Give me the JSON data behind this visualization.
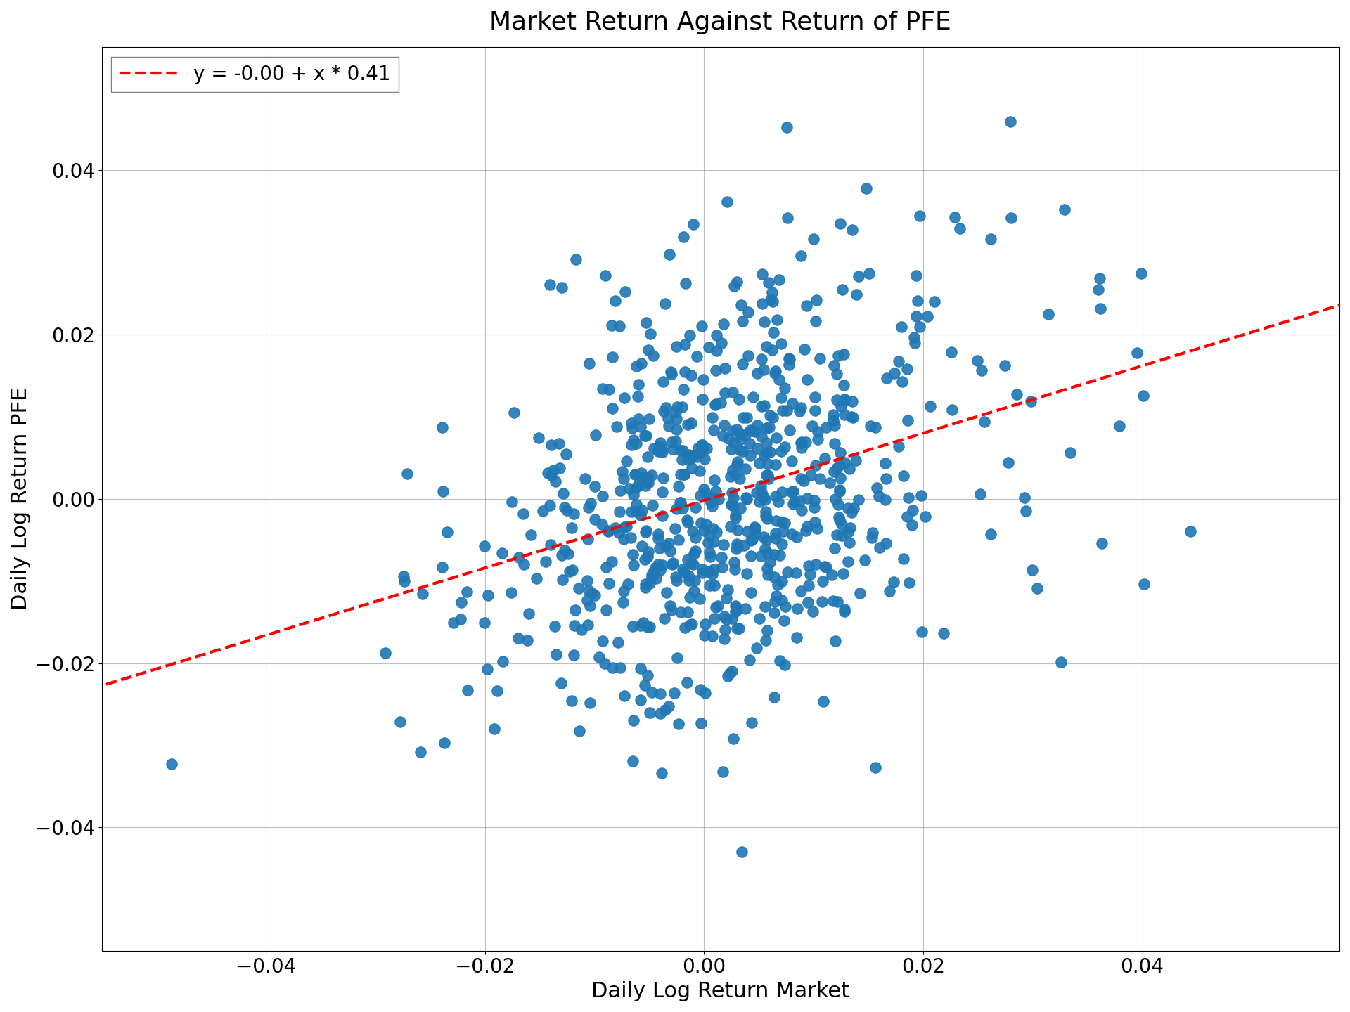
{
  "title": "Market Return Against Return of PFE",
  "xlabel": "Daily Log Return Market",
  "ylabel": "Daily Log Return PFE",
  "legend_label": "y = -0.00 + x * 0.41",
  "dot_color": "#1f77b4",
  "line_color": "#ff0000",
  "intercept": -0.0002,
  "slope": 0.41,
  "n_points": 750,
  "xlim": [
    -0.055,
    0.058
  ],
  "ylim": [
    -0.055,
    0.055
  ],
  "dot_size": 120,
  "title_fontsize": 26,
  "label_fontsize": 22,
  "tick_fontsize": 20,
  "legend_fontsize": 20,
  "seed": 12345
}
